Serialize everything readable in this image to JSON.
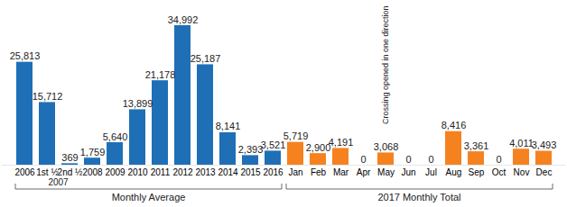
{
  "chart_data": {
    "type": "bar",
    "categories": [
      "2006",
      "1st ½",
      "2nd ½",
      "2008",
      "2009",
      "2010",
      "2011",
      "2012",
      "2013",
      "2014",
      "2015",
      "2016",
      "Jan",
      "Feb",
      "Mar",
      "Apr",
      "May",
      "Jun",
      "Jul",
      "Aug",
      "Sep",
      "Oct",
      "Nov",
      "Dec"
    ],
    "values": [
      25813,
      15712,
      369,
      1759,
      5640,
      13899,
      21178,
      34992,
      25187,
      8141,
      2393,
      3521,
      5719,
      2900,
      4191,
      0,
      3068,
      0,
      0,
      8416,
      3361,
      0,
      4011,
      3493
    ],
    "value_labels": [
      "25,813",
      "15,712",
      "369",
      "1,759",
      "5,640",
      "13,899",
      "21,178",
      "34,992",
      "25,187",
      "8,141",
      "2,393",
      "3,521",
      "5,719",
      "2,900",
      "4,191",
      "0",
      "3,068",
      "0",
      "0",
      "8,416",
      "3,361",
      "0",
      "4,011",
      "3,493"
    ],
    "colors": [
      "#1f6fb6",
      "#1f6fb6",
      "#1f6fb6",
      "#1f6fb6",
      "#1f6fb6",
      "#1f6fb6",
      "#1f6fb6",
      "#1f6fb6",
      "#1f6fb6",
      "#1f6fb6",
      "#1f6fb6",
      "#1f6fb6",
      "#f5821f",
      "#f5821f",
      "#f5821f",
      "#f5821f",
      "#f5821f",
      "#f5821f",
      "#f5821f",
      "#f5821f",
      "#f5821f",
      "#f5821f",
      "#f5821f",
      "#f5821f"
    ],
    "data_labels": true,
    "tick_labels": "x",
    "ylim": [
      0,
      34992
    ],
    "annotations": [
      {
        "text": "Crossing opened in one direction",
        "category": "May"
      }
    ],
    "x_sublabels": [
      {
        "label": "2007",
        "categories": [
          "1st ½",
          "2nd ½"
        ]
      }
    ],
    "groups": [
      {
        "label": "Monthly Average",
        "categories": [
          "2006",
          "1st ½",
          "2nd ½",
          "2008",
          "2009",
          "2010",
          "2011",
          "2012",
          "2013",
          "2014",
          "2015",
          "2016"
        ]
      },
      {
        "label": "2017 Monthly Total",
        "categories": [
          "Jan",
          "Feb",
          "Mar",
          "Apr",
          "May",
          "Jun",
          "Jul",
          "Aug",
          "Sep",
          "Oct",
          "Nov",
          "Dec"
        ]
      }
    ]
  }
}
